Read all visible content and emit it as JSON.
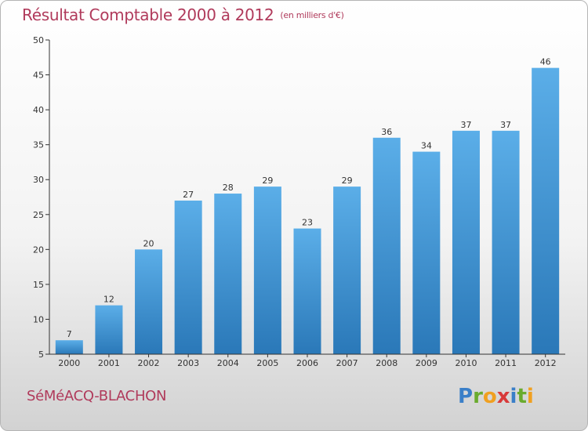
{
  "chart_data": {
    "type": "bar",
    "title": "Résultat Comptable 2000 à 2012",
    "unit": "(en milliers d'€)",
    "categories": [
      "2000",
      "2001",
      "2002",
      "2003",
      "2004",
      "2005",
      "2006",
      "2007",
      "2008",
      "2009",
      "2010",
      "2011",
      "2012"
    ],
    "values": [
      7,
      12,
      20,
      27,
      28,
      29,
      23,
      29,
      36,
      34,
      37,
      37,
      46
    ],
    "ylim": [
      5,
      50
    ],
    "yticks": [
      5,
      10,
      15,
      20,
      25,
      30,
      35,
      40,
      45,
      50
    ],
    "grid": false,
    "xlabel": "",
    "ylabel": ""
  },
  "footer": {
    "commune": "SéMéACQ-BLACHON",
    "brand_letters": [
      {
        "char": "P",
        "color": "#3a7fc8"
      },
      {
        "char": "r",
        "color": "#6aab2e"
      },
      {
        "char": "o",
        "color": "#f0a020"
      },
      {
        "char": "x",
        "color": "#d83a3a"
      },
      {
        "char": "i",
        "color": "#3a7fc8"
      },
      {
        "char": "t",
        "color": "#6aab2e"
      },
      {
        "char": "i",
        "color": "#f0a020"
      }
    ]
  },
  "colors": {
    "bar_top": "#5baee8",
    "bar_bottom": "#2a78b8",
    "title": "#b03a5b",
    "axis": "#333333"
  }
}
